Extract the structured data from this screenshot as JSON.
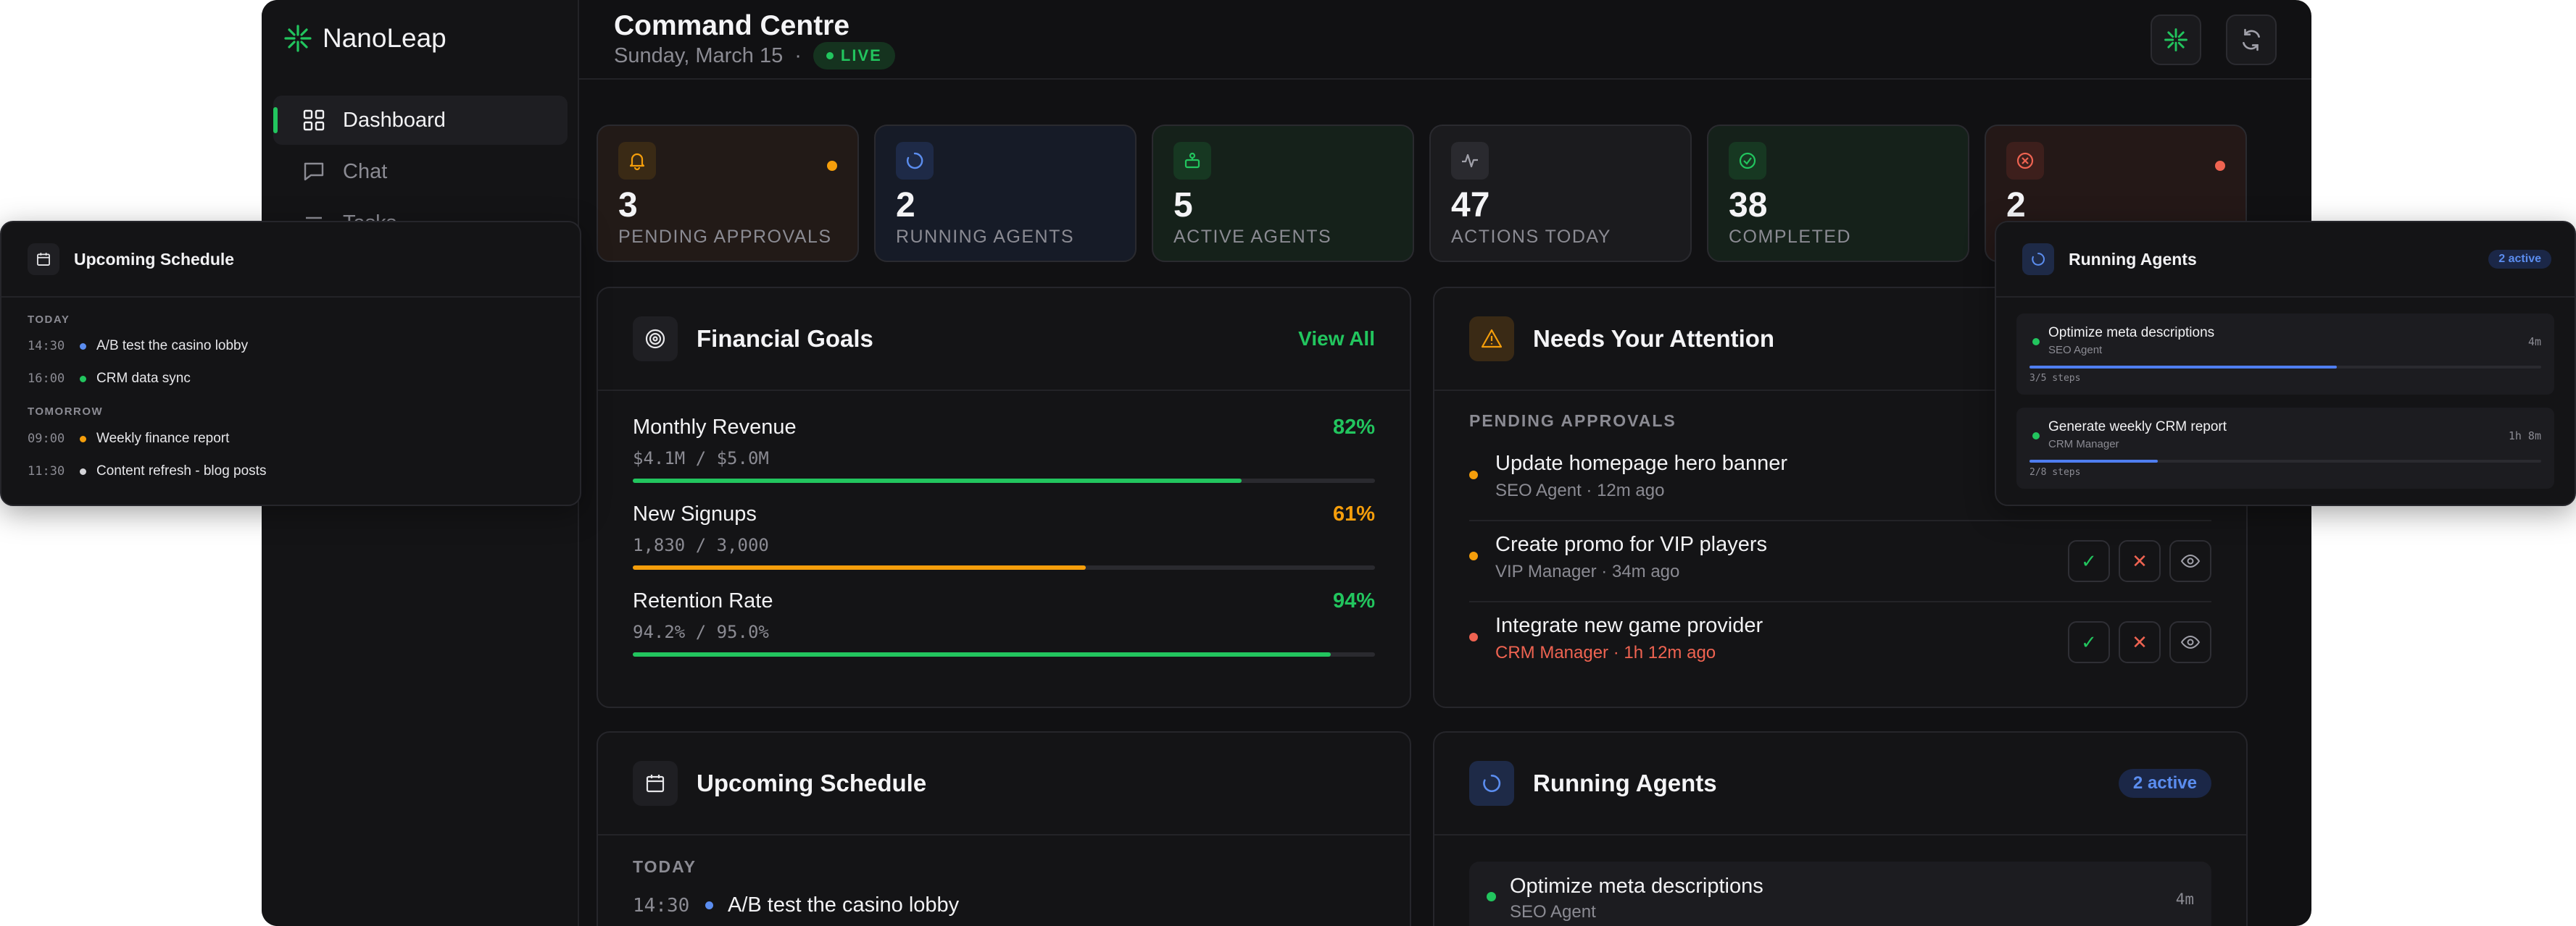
{
  "brand": {
    "name": "NanoLeap",
    "accent": "#22c55e"
  },
  "sidebar": {
    "items": [
      {
        "label": "Dashboard",
        "icon": "grid-icon",
        "active": true
      },
      {
        "label": "Chat",
        "icon": "chat-icon",
        "active": false
      },
      {
        "label": "Tasks",
        "icon": "list-icon",
        "active": false
      }
    ]
  },
  "header": {
    "title": "Command Centre",
    "date": "Sunday, March 15",
    "separator": "·",
    "live_label": "LIVE"
  },
  "stats": [
    {
      "value": "3",
      "label": "PENDING APPROVALS",
      "icon": "bell-icon",
      "color": "#f59e0b"
    },
    {
      "value": "2",
      "label": "RUNNING AGENTS",
      "icon": "spinner-icon",
      "color": "#5b8def"
    },
    {
      "value": "5",
      "label": "ACTIVE AGENTS",
      "icon": "robot-icon",
      "color": "#22c55e"
    },
    {
      "value": "47",
      "label": "ACTIONS TODAY",
      "icon": "activity-icon",
      "color": "#a1a1aa"
    },
    {
      "value": "38",
      "label": "COMPLETED",
      "icon": "check-circle-icon",
      "color": "#22c55e"
    },
    {
      "value": "2",
      "label": "",
      "icon": "x-circle-icon",
      "color": "#ef6351"
    }
  ],
  "financial_goals": {
    "title": "Financial Goals",
    "view_all": "View All",
    "goals": [
      {
        "name": "Monthly Revenue",
        "pct_label": "82%",
        "pct": 0.82,
        "value": "$4.1M / $5.0M",
        "color": "#22c55e"
      },
      {
        "name": "New Signups",
        "pct_label": "61%",
        "pct": 0.61,
        "value": "1,830 / 3,000",
        "color": "#f59e0b"
      },
      {
        "name": "Retention Rate",
        "pct_label": "94%",
        "pct": 0.94,
        "value": "94.2% / 95.0%",
        "color": "#22c55e"
      }
    ]
  },
  "attention": {
    "title": "Needs Your Attention",
    "section": "PENDING APPROVALS",
    "items": [
      {
        "title": "Update homepage hero banner",
        "sub": "SEO Agent · 12m ago",
        "dot": "#f59e0b",
        "overdue": false
      },
      {
        "title": "Create promo for VIP players",
        "sub": "VIP Manager · 34m ago",
        "dot": "#f59e0b",
        "overdue": false
      },
      {
        "title": "Integrate new game provider",
        "sub": "CRM Manager · 1h 12m ago",
        "dot": "#ef6351",
        "overdue": true
      }
    ]
  },
  "schedule": {
    "title": "Upcoming Schedule",
    "today_label": "TODAY",
    "tomorrow_label": "TOMORROW",
    "today": [
      {
        "time": "14:30",
        "text": "A/B test the casino lobby",
        "dot": "#5b8def"
      },
      {
        "time": "16:00",
        "text": "CRM data sync",
        "dot": "#22c55e"
      }
    ],
    "tomorrow": [
      {
        "time": "09:00",
        "text": "Weekly finance report",
        "dot": "#f59e0b"
      },
      {
        "time": "11:30",
        "text": "Content refresh - blog posts",
        "dot": "#d4d4d8"
      }
    ]
  },
  "running_agents": {
    "title": "Running Agents",
    "badge": "2 active",
    "agents": [
      {
        "title": "Optimize meta descriptions",
        "agent": "SEO Agent",
        "time": "4m",
        "steps": "3/5 steps",
        "progress": 0.6
      },
      {
        "title": "Generate weekly CRM report",
        "agent": "CRM Manager",
        "time": "1h 8m",
        "steps": "2/8 steps",
        "progress": 0.25
      }
    ]
  }
}
